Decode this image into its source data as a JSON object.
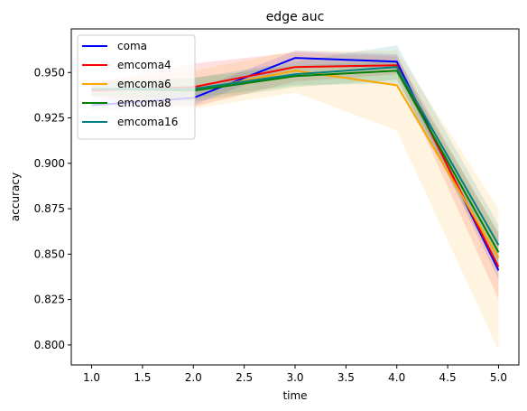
{
  "chart_data": {
    "type": "line",
    "title": "edge auc",
    "xlabel": "time",
    "ylabel": "accuracy",
    "xlim": [
      0.8,
      5.2
    ],
    "ylim": [
      0.789,
      0.974
    ],
    "xticks": [
      1.0,
      1.5,
      2.0,
      2.5,
      3.0,
      3.5,
      4.0,
      4.5,
      5.0
    ],
    "xtick_labels": [
      "1.0",
      "1.5",
      "2.0",
      "2.5",
      "3.0",
      "3.5",
      "4.0",
      "4.5",
      "5.0"
    ],
    "yticks": [
      0.8,
      0.825,
      0.85,
      0.875,
      0.9,
      0.925,
      0.95
    ],
    "ytick_labels": [
      "0.800",
      "0.825",
      "0.850",
      "0.875",
      "0.900",
      "0.925",
      "0.950"
    ],
    "grid": false,
    "legend_position": "top-left",
    "x": [
      1,
      2,
      3,
      4,
      5
    ],
    "series": [
      {
        "name": "coma",
        "color": "#0000ff",
        "values": [
          0.932,
          0.936,
          0.958,
          0.956,
          0.841
        ],
        "lower": [
          0.929,
          0.932,
          0.954,
          0.952,
          0.836
        ],
        "upper": [
          0.935,
          0.94,
          0.962,
          0.96,
          0.846
        ]
      },
      {
        "name": "emcoma4",
        "color": "#ff0000",
        "values": [
          0.94,
          0.942,
          0.953,
          0.954,
          0.843
        ],
        "lower": [
          0.936,
          0.931,
          0.945,
          0.949,
          0.825
        ],
        "upper": [
          0.944,
          0.955,
          0.961,
          0.959,
          0.861
        ]
      },
      {
        "name": "emcoma6",
        "color": "#ffa500",
        "values": [
          0.941,
          0.94,
          0.951,
          0.943,
          0.848
        ],
        "lower": [
          0.937,
          0.93,
          0.939,
          0.918,
          0.797
        ],
        "upper": [
          0.945,
          0.951,
          0.962,
          0.962,
          0.875
        ]
      },
      {
        "name": "emcoma8",
        "color": "#008000",
        "values": [
          0.941,
          0.94,
          0.948,
          0.951,
          0.851
        ],
        "lower": [
          0.937,
          0.934,
          0.942,
          0.946,
          0.841
        ],
        "upper": [
          0.945,
          0.947,
          0.954,
          0.956,
          0.862
        ]
      },
      {
        "name": "emcoma16",
        "color": "#008080",
        "values": [
          0.941,
          0.941,
          0.949,
          0.953,
          0.855
        ],
        "lower": [
          0.937,
          0.936,
          0.943,
          0.944,
          0.846
        ],
        "upper": [
          0.945,
          0.947,
          0.956,
          0.965,
          0.866
        ]
      }
    ]
  }
}
